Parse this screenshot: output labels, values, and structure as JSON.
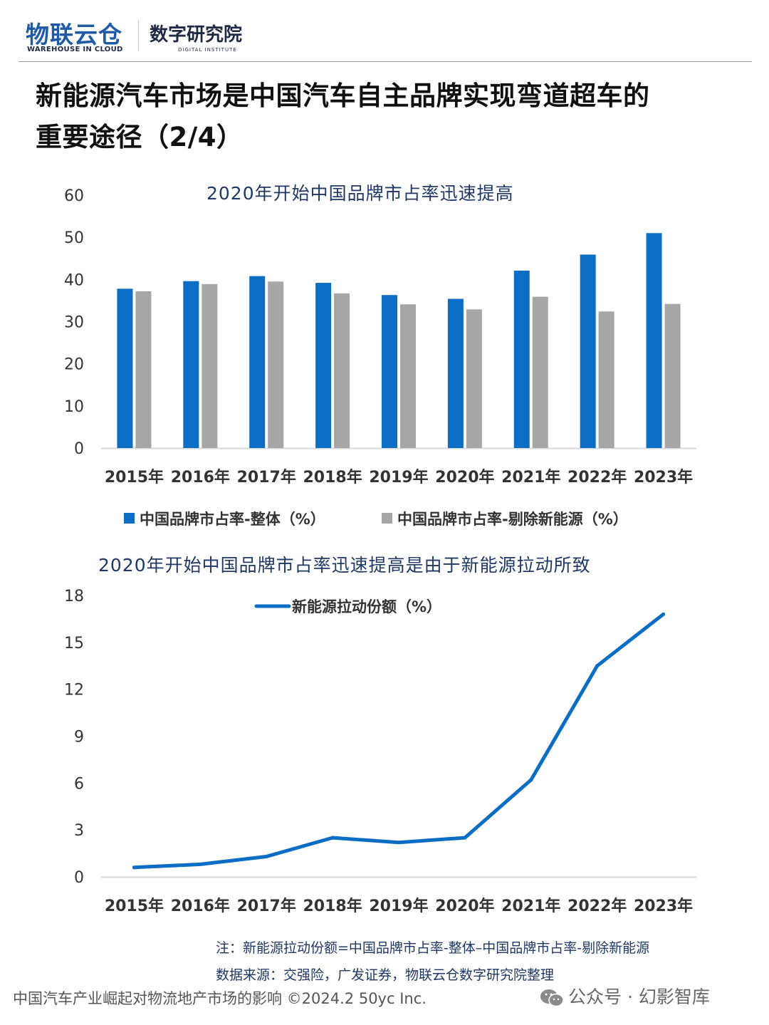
{
  "header": {
    "logo_main": "物联云仓",
    "logo_sub": "WAREHOUSE IN CLOUD",
    "institute_main": "数字研究院",
    "institute_sub": "DIGITAL INSTITUTE"
  },
  "page_title_line1": "新能源汽车市场是中国汽车自主品牌实现弯道超车的",
  "page_title_line2": "重要途径（2/4）",
  "note": "注：新能源拉动份额=中国品牌市占率-整体–中国品牌市占率-剔除新能源",
  "source": "数据来源：交强险，广发证券，物联云仓数字研究院整理",
  "footer": {
    "left": "中国汽车产业崛起对物流地产市场的影响    ©2024.2 50yc Inc.",
    "right": "公众号 · 幻影智库",
    "icon": "wechat-icon"
  },
  "colors": {
    "blue": "#0b6ec4",
    "gray": "#a6a6a6",
    "axis": "#d9d9d9",
    "title": "#1f3864"
  },
  "chart_data": [
    {
      "type": "bar",
      "title": "2020年开始中国品牌市占率迅速提高",
      "categories": [
        "2015年",
        "2016年",
        "2017年",
        "2018年",
        "2019年",
        "2020年",
        "2021年",
        "2022年",
        "2023年"
      ],
      "series": [
        {
          "name": "中国品牌市占率-整体（%）",
          "values": [
            37.8,
            39.6,
            40.8,
            39.2,
            36.3,
            35.4,
            42.1,
            45.9,
            51.0
          ]
        },
        {
          "name": "中国品牌市占率-剔除新能源（%）",
          "values": [
            37.2,
            38.9,
            39.5,
            36.7,
            34.1,
            32.9,
            35.9,
            32.4,
            34.2
          ]
        }
      ],
      "yticks": [
        "0",
        "10",
        "20",
        "30",
        "40",
        "50",
        "60"
      ],
      "ylim": [
        0,
        60
      ],
      "legend": "bottom",
      "grid": false
    },
    {
      "type": "line",
      "title": "2020年开始中国品牌市占率迅速提高是由于新能源拉动所致",
      "categories": [
        "2015年",
        "2016年",
        "2017年",
        "2018年",
        "2019年",
        "2020年",
        "2021年",
        "2022年",
        "2023年"
      ],
      "series": [
        {
          "name": "新能源拉动份额（%）",
          "values": [
            0.6,
            0.8,
            1.3,
            2.5,
            2.2,
            2.5,
            6.2,
            13.5,
            16.8
          ]
        }
      ],
      "yticks": [
        "0",
        "3",
        "6",
        "9",
        "12",
        "15",
        "18"
      ],
      "ylim": [
        0,
        18
      ],
      "legend": "top",
      "grid": false
    }
  ]
}
